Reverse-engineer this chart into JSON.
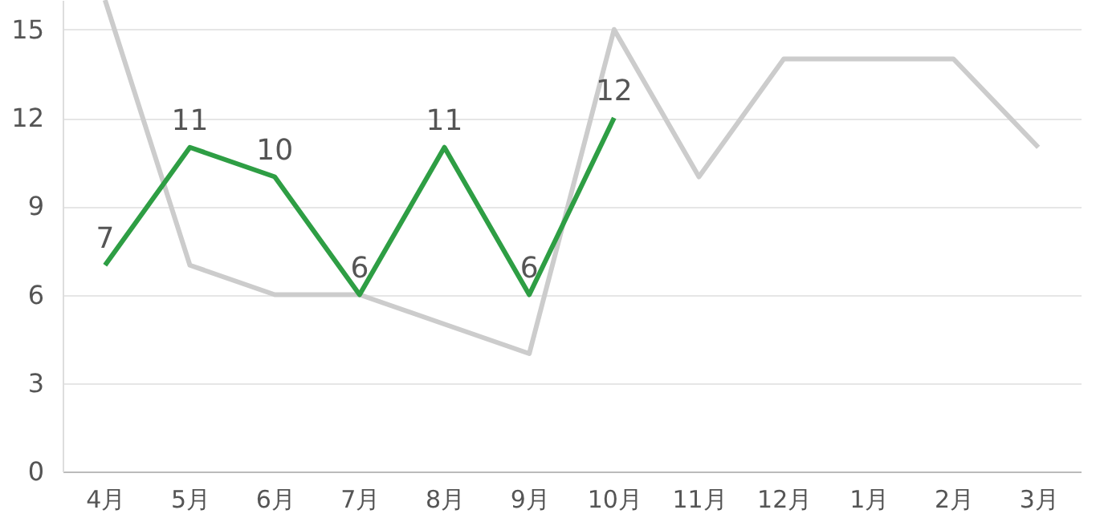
{
  "chart_data": {
    "type": "line",
    "categories": [
      "4月",
      "5月",
      "6月",
      "7月",
      "8月",
      "9月",
      "10月",
      "11月",
      "12月",
      "1月",
      "2月",
      "3月"
    ],
    "series": [
      {
        "color": "#cccccc",
        "values": [
          16,
          7,
          6,
          6,
          5,
          4,
          15,
          10,
          14,
          14,
          14,
          11
        ]
      },
      {
        "color": "#2e9e44",
        "values": [
          7,
          11,
          10,
          6,
          11,
          6,
          12,
          null,
          null,
          null,
          null,
          null
        ],
        "value_labels": [
          "7",
          "11",
          "10",
          "6",
          "11",
          "6",
          "12",
          null,
          null,
          null,
          null,
          null
        ]
      }
    ],
    "ylim": [
      0,
      16
    ],
    "yticks": [
      0,
      3,
      6,
      9,
      12,
      15
    ],
    "grid": "y"
  }
}
